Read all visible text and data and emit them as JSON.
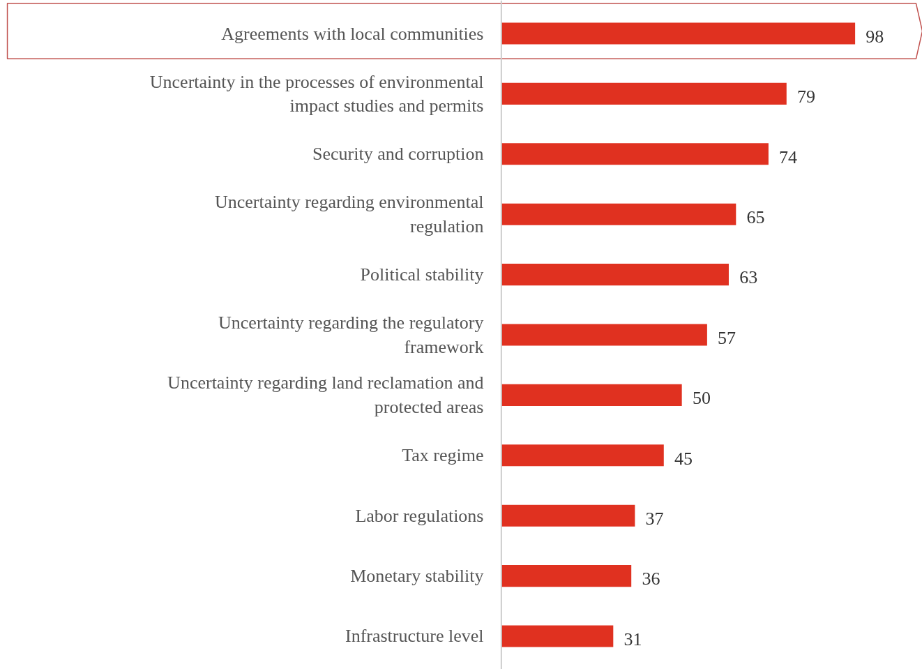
{
  "chart_data": {
    "type": "bar",
    "orientation": "horizontal",
    "data_labels": true,
    "categories": [
      "Agreements with local communities",
      "Uncertainty in the processes of environmental impact studies and permits",
      "Security and corruption",
      "Uncertainty regarding environmental regulation",
      "Political stability",
      "Uncertainty regarding the regulatory framework",
      "Uncertainty regarding land reclamation and protected areas",
      "Tax regime",
      "Labor regulations",
      "Monetary stability",
      "Infrastructure level"
    ],
    "values": [
      98,
      79,
      74,
      65,
      63,
      57,
      50,
      45,
      37,
      36,
      31
    ],
    "color": "#e03120"
  }
}
